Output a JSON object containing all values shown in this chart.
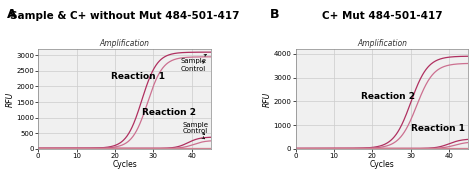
{
  "panel_A_title": "Sample & C+ without Mut 484-501-417",
  "panel_B_title": "C+ Mut 484-501-417",
  "subplot_title": "Amplification",
  "xlabel": "Cycles",
  "ylabel": "RFU",
  "x_max": 45,
  "panel_A_ylim": [
    0,
    3200
  ],
  "panel_A_yticks": [
    0,
    500,
    1000,
    1500,
    2000,
    2500,
    3000
  ],
  "panel_B_ylim": [
    0,
    4200
  ],
  "panel_B_yticks": [
    0,
    1000,
    2000,
    3000,
    4000
  ],
  "xticks": [
    0,
    10,
    20,
    30,
    40
  ],
  "line_color_dark": "#b03060",
  "line_color_light": "#cc7090",
  "flat_color_dark": "#c03060",
  "flat_color_light": "#d08090",
  "bg_color": "#f0f0f0",
  "grid_color": "#cccccc",
  "title_fontsize": 7.5,
  "subplot_title_fontsize": 5.5,
  "axis_label_fontsize": 5.5,
  "tick_fontsize": 5,
  "annot_fontsize": 5,
  "reaction_fontsize": 6.5
}
